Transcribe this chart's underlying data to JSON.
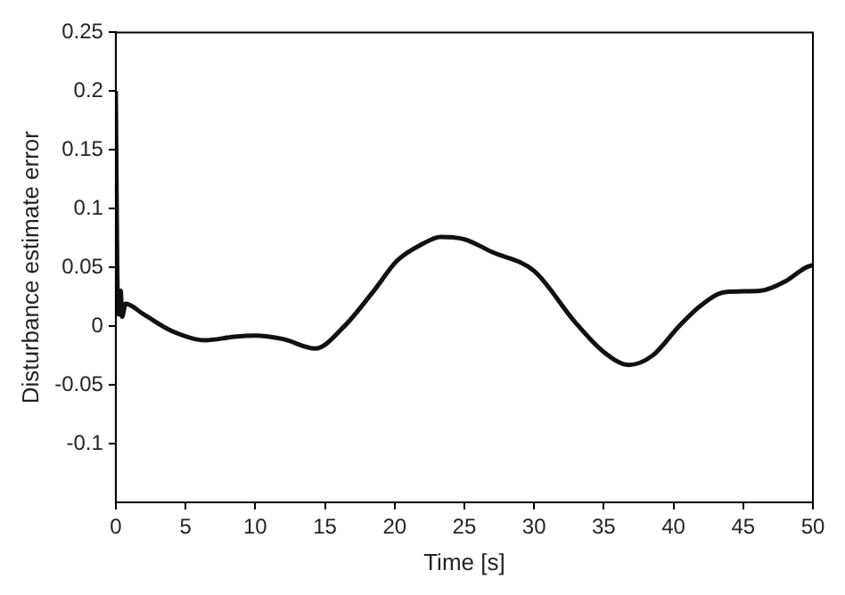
{
  "chart_data": {
    "type": "line",
    "xlabel": "Time [s]",
    "ylabel": "Disturbance estimate error",
    "series": [
      {
        "color": "#111111",
        "x": [
          0,
          0.1,
          0.2,
          0.35,
          0.45,
          0.7,
          2,
          4,
          6.4,
          8.5,
          10,
          12,
          14.3,
          16.4,
          18.5,
          20.2,
          22,
          23.3,
          25,
          27,
          30,
          32.9,
          35,
          36.8,
          38.5,
          40.4,
          42,
          43.7,
          46.2,
          48,
          49.5,
          50
        ],
        "values": [
          0.2,
          0.05,
          0.01,
          0.03,
          0.008,
          0.019,
          0.01,
          -0.004,
          -0.012,
          -0.009,
          -0.008,
          -0.011,
          -0.019,
          0,
          0.03,
          0.056,
          0.07,
          0.076,
          0.074,
          0.063,
          0.047,
          0.004,
          -0.022,
          -0.033,
          -0.025,
          0,
          0.018,
          0.029,
          0.03,
          0.038,
          0.05,
          0.052
        ]
      }
    ],
    "xlim": [
      0,
      50
    ],
    "xticks": [
      0,
      5,
      10,
      15,
      20,
      25,
      30,
      35,
      40,
      45,
      50
    ],
    "ylim": [
      -0.15,
      0.25
    ],
    "yticks": [
      -0.1,
      -0.05,
      0,
      0.05,
      0.1,
      0.15,
      0.2,
      0.25
    ],
    "grid": false,
    "legend": false,
    "marker": "none",
    "line_style": "solid"
  }
}
